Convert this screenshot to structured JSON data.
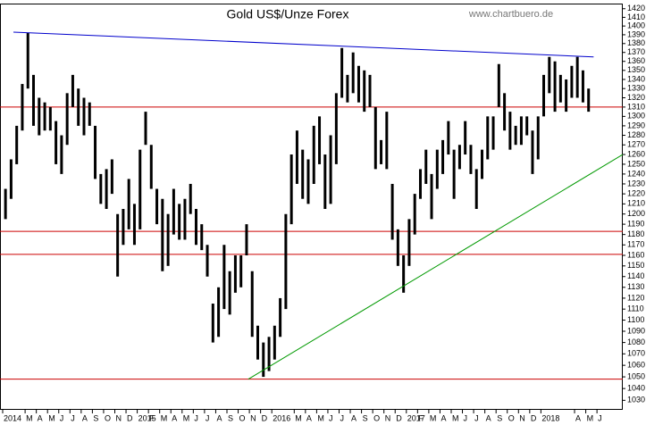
{
  "chart_data": {
    "type": "ohlc",
    "title": "Gold US$/Unze Forex",
    "source": "www.chartbuero.de",
    "color": "#000000",
    "log": true,
    "ylim": [
      1022,
      1426
    ],
    "yticks": [
      1030,
      1040,
      1050,
      1060,
      1070,
      1080,
      1090,
      1100,
      1110,
      1120,
      1130,
      1140,
      1150,
      1160,
      1170,
      1180,
      1190,
      1200,
      1210,
      1220,
      1230,
      1240,
      1250,
      1260,
      1270,
      1280,
      1290,
      1300,
      1310,
      1320,
      1330,
      1340,
      1350,
      1360,
      1370,
      1380,
      1390,
      1400,
      1410,
      1420
    ],
    "xlim": [
      0,
      55.3
    ],
    "xticks": [
      {
        "value": 0,
        "label": "2014"
      },
      {
        "value": 2,
        "label": "M"
      },
      {
        "value": 3,
        "label": "A"
      },
      {
        "value": 4,
        "label": "M"
      },
      {
        "value": 5,
        "label": "J"
      },
      {
        "value": 6,
        "label": "J"
      },
      {
        "value": 7,
        "label": "A"
      },
      {
        "value": 8,
        "label": "S"
      },
      {
        "value": 9,
        "label": "O"
      },
      {
        "value": 10,
        "label": "N"
      },
      {
        "value": 11,
        "label": "D"
      },
      {
        "value": 12,
        "label": "2015"
      },
      {
        "value": 13,
        "label": "F"
      },
      {
        "value": 14,
        "label": "M"
      },
      {
        "value": 15,
        "label": "A"
      },
      {
        "value": 16,
        "label": "M"
      },
      {
        "value": 17,
        "label": "J"
      },
      {
        "value": 18,
        "label": "J"
      },
      {
        "value": 19,
        "label": "A"
      },
      {
        "value": 20,
        "label": "S"
      },
      {
        "value": 21,
        "label": "O"
      },
      {
        "value": 22,
        "label": "N"
      },
      {
        "value": 23,
        "label": "D"
      },
      {
        "value": 24,
        "label": "2016"
      },
      {
        "value": 26,
        "label": "M"
      },
      {
        "value": 27,
        "label": "A"
      },
      {
        "value": 28,
        "label": "M"
      },
      {
        "value": 29,
        "label": "J"
      },
      {
        "value": 30,
        "label": "J"
      },
      {
        "value": 31,
        "label": "A"
      },
      {
        "value": 32,
        "label": "S"
      },
      {
        "value": 33,
        "label": "O"
      },
      {
        "value": 34,
        "label": "N"
      },
      {
        "value": 35,
        "label": "D"
      },
      {
        "value": 36,
        "label": "2017"
      },
      {
        "value": 37,
        "label": "F"
      },
      {
        "value": 38,
        "label": "M"
      },
      {
        "value": 39,
        "label": "A"
      },
      {
        "value": 40,
        "label": "M"
      },
      {
        "value": 41,
        "label": "J"
      },
      {
        "value": 42,
        "label": "J"
      },
      {
        "value": 43,
        "label": "A"
      },
      {
        "value": 44,
        "label": "S"
      },
      {
        "value": 45,
        "label": "O"
      },
      {
        "value": 46,
        "label": "N"
      },
      {
        "value": 47,
        "label": "D"
      },
      {
        "value": 48,
        "label": "2018"
      },
      {
        "value": 51,
        "label": "A"
      },
      {
        "value": 52,
        "label": "M"
      },
      {
        "value": 53,
        "label": "J"
      }
    ],
    "x": [
      0.25,
      0.75,
      1.25,
      1.75,
      2.25,
      2.75,
      3.25,
      3.75,
      4.25,
      4.75,
      5.25,
      5.75,
      6.25,
      6.75,
      7.25,
      7.75,
      8.25,
      8.75,
      9.25,
      9.75,
      10.25,
      10.75,
      11.25,
      11.75,
      12.25,
      12.75,
      13.25,
      13.75,
      14.25,
      14.75,
      15.25,
      15.75,
      16.25,
      16.75,
      17.25,
      17.75,
      18.25,
      18.75,
      19.25,
      19.75,
      20.25,
      20.75,
      21.25,
      21.75,
      22.25,
      22.75,
      23.25,
      23.75,
      24.25,
      24.75,
      25.25,
      25.75,
      26.25,
      26.75,
      27.25,
      27.75,
      28.25,
      28.75,
      29.25,
      29.75,
      30.25,
      30.75,
      31.25,
      31.75,
      32.25,
      32.75,
      33.25,
      33.75,
      34.25,
      34.75,
      35.25,
      35.75,
      36.25,
      36.75,
      37.25,
      37.75,
      38.25,
      38.75,
      39.25,
      39.75,
      40.25,
      40.75,
      41.25,
      41.75,
      42.25,
      42.75,
      43.25,
      43.75,
      44.25,
      44.75,
      45.25,
      45.75,
      46.25,
      46.75,
      47.25,
      47.75,
      48.25,
      48.75,
      49.25,
      49.75,
      50.25,
      50.75,
      51.25,
      51.75,
      52.25
    ],
    "low": [
      1195,
      1215,
      1250,
      1285,
      1330,
      1290,
      1280,
      1285,
      1285,
      1250,
      1240,
      1270,
      1310,
      1290,
      1280,
      1290,
      1235,
      1210,
      1205,
      1220,
      1140,
      1170,
      1185,
      1170,
      1185,
      1270,
      1225,
      1190,
      1145,
      1150,
      1180,
      1175,
      1175,
      1200,
      1170,
      1165,
      1140,
      1080,
      1085,
      1110,
      1105,
      1125,
      1130,
      1160,
      1085,
      1065,
      1050,
      1055,
      1065,
      1085,
      1110,
      1190,
      1230,
      1215,
      1210,
      1230,
      1250,
      1205,
      1210,
      1250,
      1320,
      1315,
      1325,
      1315,
      1305,
      1310,
      1245,
      1250,
      1245,
      1175,
      1150,
      1125,
      1150,
      1180,
      1215,
      1230,
      1195,
      1225,
      1240,
      1260,
      1215,
      1245,
      1260,
      1240,
      1205,
      1235,
      1255,
      1265,
      1310,
      1285,
      1265,
      1270,
      1270,
      1280,
      1240,
      1255,
      1300,
      1325,
      1305,
      1315,
      1305,
      1320,
      1320,
      1315,
      1305
    ],
    "high": [
      1225,
      1255,
      1290,
      1335,
      1392,
      1345,
      1320,
      1315,
      1310,
      1295,
      1280,
      1325,
      1345,
      1330,
      1320,
      1315,
      1290,
      1240,
      1245,
      1255,
      1200,
      1205,
      1235,
      1210,
      1265,
      1305,
      1270,
      1225,
      1215,
      1200,
      1225,
      1210,
      1215,
      1230,
      1205,
      1190,
      1170,
      1115,
      1130,
      1170,
      1145,
      1160,
      1160,
      1190,
      1145,
      1095,
      1080,
      1085,
      1095,
      1120,
      1200,
      1260,
      1285,
      1265,
      1255,
      1290,
      1300,
      1260,
      1280,
      1325,
      1375,
      1345,
      1370,
      1355,
      1350,
      1345,
      1310,
      1275,
      1305,
      1230,
      1185,
      1160,
      1195,
      1220,
      1245,
      1265,
      1240,
      1265,
      1275,
      1295,
      1265,
      1270,
      1295,
      1270,
      1245,
      1265,
      1300,
      1300,
      1357,
      1325,
      1305,
      1290,
      1300,
      1300,
      1285,
      1300,
      1345,
      1365,
      1360,
      1345,
      1340,
      1355,
      1365,
      1350,
      1330
    ],
    "hlines": [
      {
        "value": 1310,
        "color": "#cc0000"
      },
      {
        "value": 1183,
        "color": "#cc0000"
      },
      {
        "value": 1161,
        "color": "#cc0000"
      },
      {
        "value": 1048,
        "color": "#cc0000"
      }
    ],
    "trendlines": [
      {
        "x": [
          0.96,
          52.7
        ],
        "y": [
          1393,
          1365
        ],
        "color": "#0000cc"
      },
      {
        "x": [
          21.9,
          55.3
        ],
        "y": [
          1048,
          1260
        ],
        "color": "#009900"
      }
    ]
  }
}
